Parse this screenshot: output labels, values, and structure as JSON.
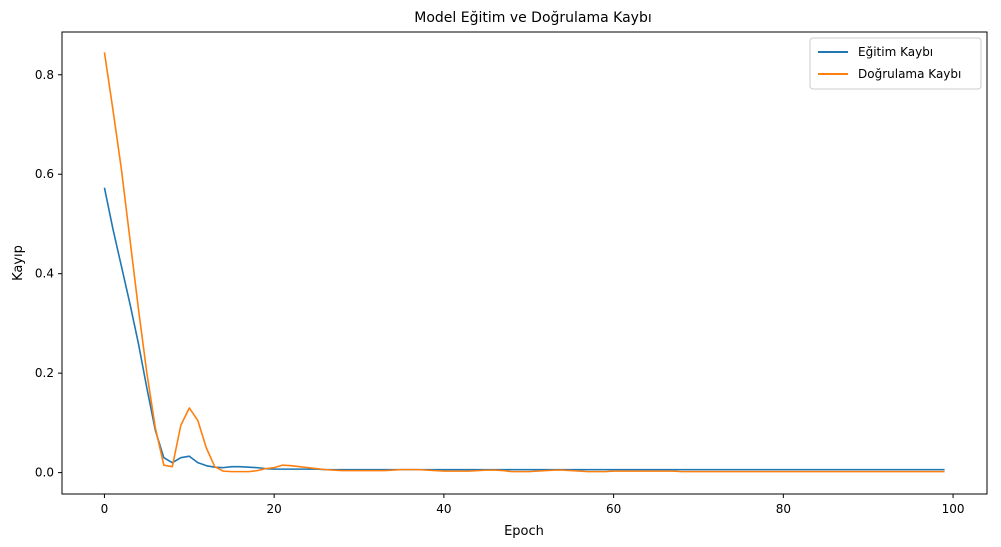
{
  "chart_data": {
    "type": "line",
    "title": "Model Eğitim ve Doğrulama Kaybı",
    "xlabel": "Epoch",
    "ylabel": "Kayıp",
    "xlim": [
      -5,
      104
    ],
    "ylim": [
      -0.043,
      0.886
    ],
    "xticks": [
      0,
      20,
      40,
      60,
      80,
      100
    ],
    "yticks": [
      0.0,
      0.2,
      0.4,
      0.6,
      0.8
    ],
    "grid": false,
    "legend_position": "top-right",
    "series": [
      {
        "name": "Eğitim Kaybı",
        "color": "#1f77b4",
        "x": [
          0,
          1,
          2,
          3,
          4,
          5,
          6,
          7,
          8,
          9,
          10,
          11,
          12,
          13,
          14,
          15,
          16,
          17,
          18,
          19,
          20,
          21,
          22,
          23,
          24,
          25,
          26,
          27,
          28,
          29,
          30,
          31,
          32,
          33,
          34,
          35,
          36,
          37,
          38,
          39,
          40,
          41,
          42,
          43,
          44,
          45,
          46,
          47,
          48,
          49,
          50,
          51,
          52,
          53,
          54,
          55,
          56,
          57,
          58,
          59,
          60,
          61,
          62,
          63,
          64,
          65,
          66,
          67,
          68,
          69,
          70,
          71,
          72,
          73,
          74,
          75,
          76,
          77,
          78,
          79,
          80,
          81,
          82,
          83,
          84,
          85,
          86,
          87,
          88,
          89,
          90,
          91,
          92,
          93,
          94,
          95,
          96,
          97,
          98,
          99
        ],
        "values": [
          0.573,
          0.49,
          0.415,
          0.34,
          0.26,
          0.17,
          0.085,
          0.03,
          0.02,
          0.03,
          0.033,
          0.02,
          0.014,
          0.011,
          0.01,
          0.012,
          0.012,
          0.011,
          0.01,
          0.008,
          0.007,
          0.007,
          0.007,
          0.007,
          0.007,
          0.007,
          0.006,
          0.006,
          0.006,
          0.006,
          0.006,
          0.006,
          0.006,
          0.006,
          0.006,
          0.006,
          0.006,
          0.006,
          0.006,
          0.006,
          0.006,
          0.006,
          0.006,
          0.006,
          0.006,
          0.006,
          0.006,
          0.006,
          0.006,
          0.006,
          0.006,
          0.006,
          0.006,
          0.006,
          0.006,
          0.006,
          0.006,
          0.006,
          0.006,
          0.006,
          0.006,
          0.006,
          0.006,
          0.006,
          0.006,
          0.006,
          0.006,
          0.006,
          0.006,
          0.006,
          0.006,
          0.006,
          0.006,
          0.006,
          0.006,
          0.006,
          0.006,
          0.006,
          0.006,
          0.006,
          0.006,
          0.006,
          0.006,
          0.006,
          0.006,
          0.006,
          0.006,
          0.006,
          0.006,
          0.006,
          0.006,
          0.006,
          0.006,
          0.006,
          0.006,
          0.006,
          0.006,
          0.006,
          0.006,
          0.006
        ]
      },
      {
        "name": "Doğrulama Kaybı",
        "color": "#ff7f0e",
        "x": [
          0,
          1,
          2,
          3,
          4,
          5,
          6,
          7,
          8,
          9,
          10,
          11,
          12,
          13,
          14,
          15,
          16,
          17,
          18,
          19,
          20,
          21,
          22,
          23,
          24,
          25,
          26,
          27,
          28,
          29,
          30,
          31,
          32,
          33,
          34,
          35,
          36,
          37,
          38,
          39,
          40,
          41,
          42,
          43,
          44,
          45,
          46,
          47,
          48,
          49,
          50,
          51,
          52,
          53,
          54,
          55,
          56,
          57,
          58,
          59,
          60,
          61,
          62,
          63,
          64,
          65,
          66,
          67,
          68,
          69,
          70,
          71,
          72,
          73,
          74,
          75,
          76,
          77,
          78,
          79,
          80,
          81,
          82,
          83,
          84,
          85,
          86,
          87,
          88,
          89,
          90,
          91,
          92,
          93,
          94,
          95,
          96,
          97,
          98,
          99
        ],
        "values": [
          0.845,
          0.73,
          0.61,
          0.47,
          0.33,
          0.2,
          0.09,
          0.015,
          0.012,
          0.095,
          0.13,
          0.105,
          0.05,
          0.012,
          0.003,
          0.002,
          0.002,
          0.002,
          0.004,
          0.008,
          0.01,
          0.015,
          0.014,
          0.012,
          0.01,
          0.008,
          0.006,
          0.005,
          0.004,
          0.004,
          0.004,
          0.004,
          0.004,
          0.004,
          0.005,
          0.006,
          0.006,
          0.006,
          0.005,
          0.004,
          0.003,
          0.003,
          0.003,
          0.003,
          0.004,
          0.005,
          0.005,
          0.004,
          0.002,
          0.002,
          0.002,
          0.003,
          0.004,
          0.005,
          0.005,
          0.004,
          0.003,
          0.002,
          0.002,
          0.002,
          0.003,
          0.003,
          0.003,
          0.003,
          0.003,
          0.003,
          0.003,
          0.003,
          0.002,
          0.002,
          0.002,
          0.002,
          0.002,
          0.002,
          0.002,
          0.002,
          0.002,
          0.002,
          0.002,
          0.002,
          0.002,
          0.002,
          0.002,
          0.002,
          0.002,
          0.002,
          0.002,
          0.002,
          0.002,
          0.002,
          0.002,
          0.002,
          0.002,
          0.002,
          0.002,
          0.002,
          0.002,
          0.002,
          0.002,
          0.002
        ]
      }
    ]
  }
}
